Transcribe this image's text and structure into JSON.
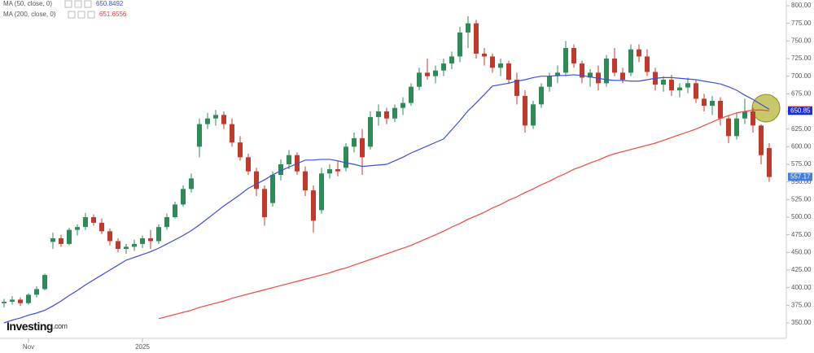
{
  "chart_data": {
    "type": "candlestick",
    "up_color": "#2e8b57",
    "down_color": "#c0392b",
    "ohlc": [
      [
        378,
        384,
        372,
        380
      ],
      [
        380,
        388,
        376,
        383
      ],
      [
        383,
        386,
        374,
        378
      ],
      [
        378,
        392,
        376,
        390
      ],
      [
        390,
        402,
        386,
        398
      ],
      [
        398,
        420,
        396,
        418
      ],
      [
        465,
        478,
        455,
        470
      ],
      [
        470,
        475,
        458,
        462
      ],
      [
        462,
        485,
        460,
        482
      ],
      [
        482,
        490,
        474,
        486
      ],
      [
        486,
        506,
        482,
        500
      ],
      [
        500,
        504,
        488,
        492
      ],
      [
        492,
        498,
        476,
        480
      ],
      [
        480,
        484,
        460,
        466
      ],
      [
        466,
        470,
        450,
        455
      ],
      [
        455,
        462,
        448,
        458
      ],
      [
        458,
        468,
        452,
        462
      ],
      [
        462,
        474,
        456,
        470
      ],
      [
        470,
        482,
        455,
        466
      ],
      [
        466,
        490,
        462,
        486
      ],
      [
        486,
        505,
        482,
        500
      ],
      [
        500,
        522,
        498,
        518
      ],
      [
        518,
        545,
        515,
        540
      ],
      [
        540,
        562,
        535,
        555
      ],
      [
        600,
        640,
        585,
        632
      ],
      [
        632,
        648,
        625,
        640
      ],
      [
        640,
        652,
        630,
        645
      ],
      [
        645,
        650,
        625,
        632
      ],
      [
        632,
        640,
        600,
        606
      ],
      [
        606,
        615,
        580,
        585
      ],
      [
        585,
        590,
        560,
        565
      ],
      [
        565,
        570,
        530,
        540
      ],
      [
        540,
        545,
        488,
        500
      ],
      [
        520,
        565,
        515,
        560
      ],
      [
        560,
        582,
        552,
        575
      ],
      [
        575,
        595,
        568,
        588
      ],
      [
        588,
        592,
        560,
        565
      ],
      [
        565,
        572,
        530,
        538
      ],
      [
        538,
        545,
        478,
        495
      ],
      [
        510,
        570,
        505,
        562
      ],
      [
        562,
        575,
        555,
        568
      ],
      [
        568,
        580,
        558,
        565
      ],
      [
        570,
        605,
        565,
        600
      ],
      [
        600,
        620,
        592,
        612
      ],
      [
        612,
        625,
        560,
        585
      ],
      [
        600,
        650,
        596,
        642
      ],
      [
        642,
        660,
        630,
        650
      ],
      [
        650,
        655,
        632,
        640
      ],
      [
        640,
        660,
        635,
        655
      ],
      [
        655,
        670,
        645,
        662
      ],
      [
        662,
        690,
        658,
        685
      ],
      [
        685,
        712,
        680,
        705
      ],
      [
        705,
        725,
        695,
        700
      ],
      [
        700,
        715,
        690,
        708
      ],
      [
        708,
        725,
        700,
        718
      ],
      [
        718,
        735,
        710,
        728
      ],
      [
        728,
        770,
        720,
        762
      ],
      [
        762,
        785,
        740,
        775
      ],
      [
        775,
        780,
        725,
        732
      ],
      [
        732,
        740,
        715,
        728
      ],
      [
        728,
        732,
        705,
        712
      ],
      [
        712,
        725,
        700,
        718
      ],
      [
        718,
        722,
        690,
        695
      ],
      [
        695,
        705,
        660,
        672
      ],
      [
        672,
        680,
        620,
        630
      ],
      [
        630,
        665,
        625,
        660
      ],
      [
        660,
        690,
        655,
        685
      ],
      [
        685,
        705,
        678,
        700
      ],
      [
        700,
        715,
        690,
        705
      ],
      [
        705,
        750,
        700,
        740
      ],
      [
        740,
        745,
        712,
        718
      ],
      [
        718,
        722,
        690,
        698
      ],
      [
        698,
        710,
        685,
        705
      ],
      [
        705,
        715,
        680,
        690
      ],
      [
        690,
        730,
        685,
        725
      ],
      [
        725,
        740,
        700,
        705
      ],
      [
        705,
        712,
        690,
        695
      ],
      [
        705,
        745,
        700,
        738
      ],
      [
        738,
        745,
        720,
        728
      ],
      [
        728,
        738,
        700,
        706
      ],
      [
        706,
        712,
        680,
        688
      ],
      [
        688,
        700,
        678,
        695
      ],
      [
        695,
        702,
        672,
        680
      ],
      [
        680,
        690,
        670,
        684
      ],
      [
        684,
        698,
        676,
        690
      ],
      [
        690,
        694,
        662,
        668
      ],
      [
        668,
        675,
        650,
        658
      ],
      [
        658,
        672,
        645,
        665
      ],
      [
        665,
        670,
        630,
        640
      ],
      [
        640,
        645,
        605,
        615
      ],
      [
        615,
        648,
        610,
        640
      ],
      [
        640,
        668,
        632,
        650
      ],
      [
        650,
        655,
        620,
        630
      ],
      [
        630,
        632,
        575,
        588
      ],
      [
        598,
        605,
        550,
        557
      ]
    ],
    "series": [
      {
        "name": "MA (50, close, 0)",
        "color": "#3a4ee0",
        "last": 650.8492,
        "values": [
          350,
          354,
          357,
          361,
          364,
          368,
          374,
          381,
          389,
          396,
          404,
          411,
          418,
          425,
          432,
          439,
          443,
          447,
          451,
          456,
          462,
          468,
          474,
          481,
          489,
          498,
          507,
          516,
          524,
          532,
          541,
          547,
          553,
          560,
          566,
          571,
          576,
          581,
          581,
          582,
          582,
          580,
          577,
          575,
          572,
          573,
          574,
          575,
          580,
          585,
          591,
          596,
          601,
          606,
          611,
          624,
          637,
          651,
          662,
          674,
          686,
          688,
          690,
          693,
          695,
          698,
          700,
          700,
          701,
          701,
          702,
          701,
          699,
          697,
          695,
          694,
          694,
          693,
          693,
          695,
          697,
          698,
          698,
          697,
          696,
          695,
          693,
          691,
          689,
          685,
          680,
          673,
          667,
          660,
          653
        ]
      },
      {
        "name": "MA (200, close, 0)",
        "color": "#f0483c",
        "last": 651.6556,
        "values": [
          null,
          null,
          null,
          null,
          null,
          null,
          null,
          null,
          null,
          null,
          null,
          null,
          null,
          null,
          null,
          null,
          null,
          null,
          null,
          356,
          359,
          362,
          365,
          368,
          372,
          375,
          378,
          381,
          385,
          388,
          391,
          394,
          397,
          400,
          403,
          406,
          409,
          412,
          415,
          418,
          421,
          425,
          428,
          432,
          436,
          440,
          444,
          448,
          452,
          456,
          460,
          465,
          470,
          475,
          480,
          486,
          491,
          497,
          502,
          507,
          513,
          518,
          524,
          529,
          535,
          540,
          546,
          551,
          557,
          562,
          568,
          572,
          577,
          581,
          586,
          590,
          593,
          596,
          599,
          602,
          605,
          609,
          613,
          617,
          621,
          625,
          630,
          635,
          640,
          644,
          648,
          650,
          652,
          652,
          651
        ]
      }
    ],
    "price_tags": [
      {
        "value": 651.66,
        "color": "#e53935"
      },
      {
        "value": 650.85,
        "color": "#1a2fd6"
      },
      {
        "value": 557.17,
        "color": "#3f7fe0"
      }
    ],
    "ylim": [
      350,
      800
    ],
    "ylim_pixels_note_free": true,
    "yticks": [
      {
        "value": 350,
        "label": "350.00"
      },
      {
        "value": 375,
        "label": "375.00"
      },
      {
        "value": 400,
        "label": "400.00"
      },
      {
        "value": 425,
        "label": "425.00"
      },
      {
        "value": 450,
        "label": "450.00"
      },
      {
        "value": 475,
        "label": "475.00"
      },
      {
        "value": 500,
        "label": "500.00"
      },
      {
        "value": 525,
        "label": "525.00"
      },
      {
        "value": 550,
        "label": "550.00"
      },
      {
        "value": 575,
        "label": "575.00"
      },
      {
        "value": 600,
        "label": "600.00"
      },
      {
        "value": 625,
        "label": "625.00"
      },
      {
        "value": 650,
        "label": "650.00"
      },
      {
        "value": 675,
        "label": "675.00"
      },
      {
        "value": 700,
        "label": "700.00"
      },
      {
        "value": 725,
        "label": "725.00"
      },
      {
        "value": 750,
        "label": "750.00"
      },
      {
        "value": 775,
        "label": "775.00"
      },
      {
        "value": 800,
        "label": "800.00"
      }
    ],
    "xticks": [
      {
        "value": 3,
        "label": "Nov"
      },
      {
        "value": 17,
        "label": "2025"
      }
    ],
    "logo": "Investing",
    "logo_suffix": ".com"
  }
}
